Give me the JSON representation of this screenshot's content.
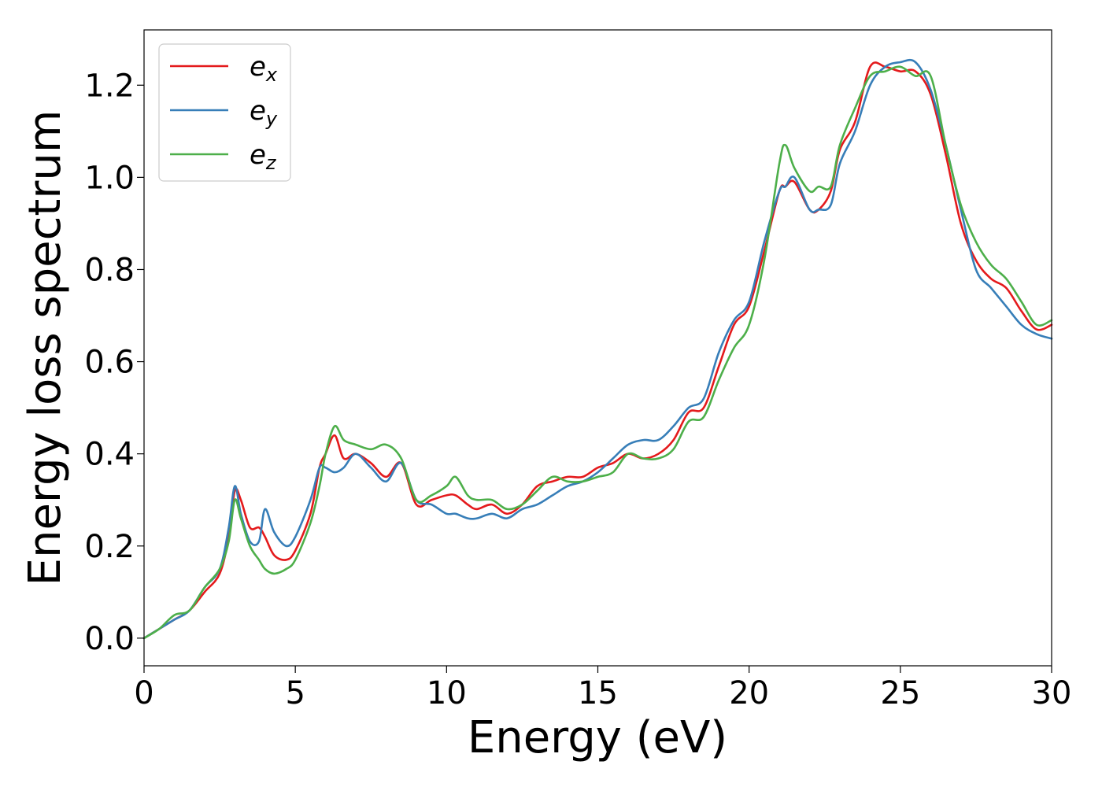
{
  "chart_data": {
    "type": "line",
    "title": "",
    "xlabel": "Energy (eV)",
    "ylabel": "Energy loss spectrum",
    "xlim": [
      0,
      30
    ],
    "ylim": [
      -0.06,
      1.32
    ],
    "xticks": [
      0,
      5,
      10,
      15,
      20,
      25,
      30
    ],
    "yticks": [
      0.0,
      0.2,
      0.4,
      0.6,
      0.8,
      1.0,
      1.2
    ],
    "xtick_labels": [
      "0",
      "5",
      "10",
      "15",
      "20",
      "25",
      "30"
    ],
    "ytick_labels": [
      "0.0",
      "0.2",
      "0.4",
      "0.6",
      "0.8",
      "1.0",
      "1.2"
    ],
    "grid": false,
    "legend_position": "top-left",
    "series": [
      {
        "name": "e",
        "subscript": "x",
        "color": "#e41a1c",
        "x": [
          0,
          0.5,
          1.0,
          1.5,
          2.0,
          2.5,
          2.8,
          3.0,
          3.2,
          3.5,
          3.8,
          4.0,
          4.3,
          4.7,
          5.0,
          5.5,
          5.8,
          6.0,
          6.3,
          6.6,
          7.0,
          7.5,
          8.0,
          8.5,
          9.0,
          9.5,
          10.0,
          10.3,
          10.7,
          11.0,
          11.5,
          12.0,
          12.5,
          13.0,
          13.5,
          14.0,
          14.5,
          15.0,
          15.5,
          16.0,
          16.5,
          17.0,
          17.5,
          18.0,
          18.5,
          19.0,
          19.5,
          20.0,
          20.5,
          21.0,
          21.2,
          21.5,
          22.0,
          22.3,
          22.7,
          23.0,
          23.5,
          24.0,
          24.5,
          25.0,
          25.5,
          26.0,
          26.5,
          27.0,
          27.5,
          28.0,
          28.5,
          29.0,
          29.5,
          30.0
        ],
        "values": [
          0.0,
          0.02,
          0.04,
          0.06,
          0.1,
          0.14,
          0.22,
          0.32,
          0.3,
          0.24,
          0.24,
          0.22,
          0.18,
          0.17,
          0.19,
          0.27,
          0.37,
          0.4,
          0.44,
          0.39,
          0.4,
          0.38,
          0.35,
          0.38,
          0.29,
          0.3,
          0.31,
          0.31,
          0.29,
          0.28,
          0.29,
          0.27,
          0.29,
          0.33,
          0.34,
          0.35,
          0.35,
          0.37,
          0.38,
          0.4,
          0.39,
          0.4,
          0.43,
          0.49,
          0.5,
          0.59,
          0.68,
          0.72,
          0.84,
          0.97,
          0.98,
          0.99,
          0.93,
          0.93,
          0.97,
          1.06,
          1.12,
          1.24,
          1.24,
          1.23,
          1.23,
          1.18,
          1.05,
          0.9,
          0.82,
          0.78,
          0.76,
          0.71,
          0.67,
          0.68
        ]
      },
      {
        "name": "e",
        "subscript": "y",
        "color": "#377eb8",
        "x": [
          0,
          0.5,
          1.0,
          1.5,
          2.0,
          2.5,
          2.8,
          3.0,
          3.2,
          3.5,
          3.8,
          4.0,
          4.3,
          4.7,
          5.0,
          5.5,
          5.8,
          6.0,
          6.3,
          6.6,
          7.0,
          7.5,
          8.0,
          8.5,
          9.0,
          9.5,
          10.0,
          10.3,
          10.7,
          11.0,
          11.5,
          12.0,
          12.5,
          13.0,
          13.5,
          14.0,
          14.5,
          15.0,
          15.5,
          16.0,
          16.5,
          17.0,
          17.5,
          18.0,
          18.5,
          19.0,
          19.5,
          20.0,
          20.5,
          21.0,
          21.2,
          21.5,
          22.0,
          22.3,
          22.7,
          23.0,
          23.5,
          24.0,
          24.5,
          25.0,
          25.5,
          26.0,
          26.5,
          27.0,
          27.5,
          28.0,
          28.5,
          29.0,
          29.5,
          30.0
        ],
        "values": [
          0.0,
          0.02,
          0.04,
          0.06,
          0.11,
          0.15,
          0.24,
          0.33,
          0.27,
          0.21,
          0.21,
          0.28,
          0.23,
          0.2,
          0.22,
          0.3,
          0.37,
          0.37,
          0.36,
          0.37,
          0.4,
          0.37,
          0.34,
          0.38,
          0.3,
          0.29,
          0.27,
          0.27,
          0.26,
          0.26,
          0.27,
          0.26,
          0.28,
          0.29,
          0.31,
          0.33,
          0.34,
          0.36,
          0.39,
          0.42,
          0.43,
          0.43,
          0.46,
          0.5,
          0.52,
          0.62,
          0.69,
          0.73,
          0.86,
          0.97,
          0.98,
          1.0,
          0.93,
          0.93,
          0.94,
          1.03,
          1.1,
          1.2,
          1.24,
          1.25,
          1.25,
          1.19,
          1.07,
          0.93,
          0.8,
          0.76,
          0.72,
          0.68,
          0.66,
          0.65
        ]
      },
      {
        "name": "e",
        "subscript": "z",
        "color": "#4daf4a",
        "x": [
          0,
          0.5,
          1.0,
          1.5,
          2.0,
          2.5,
          2.8,
          3.0,
          3.2,
          3.5,
          3.8,
          4.0,
          4.3,
          4.7,
          5.0,
          5.5,
          5.8,
          6.0,
          6.3,
          6.6,
          7.0,
          7.5,
          8.0,
          8.5,
          9.0,
          9.5,
          10.0,
          10.3,
          10.7,
          11.0,
          11.5,
          12.0,
          12.5,
          13.0,
          13.5,
          14.0,
          14.5,
          15.0,
          15.5,
          16.0,
          16.5,
          17.0,
          17.5,
          18.0,
          18.5,
          19.0,
          19.5,
          20.0,
          20.5,
          21.0,
          21.2,
          21.5,
          22.0,
          22.3,
          22.7,
          23.0,
          23.5,
          24.0,
          24.5,
          25.0,
          25.5,
          26.0,
          26.5,
          27.0,
          27.5,
          28.0,
          28.5,
          29.0,
          29.5,
          30.0
        ],
        "values": [
          0.0,
          0.02,
          0.05,
          0.06,
          0.11,
          0.15,
          0.21,
          0.3,
          0.26,
          0.2,
          0.17,
          0.15,
          0.14,
          0.15,
          0.17,
          0.25,
          0.33,
          0.4,
          0.46,
          0.43,
          0.42,
          0.41,
          0.42,
          0.39,
          0.3,
          0.31,
          0.33,
          0.35,
          0.31,
          0.3,
          0.3,
          0.28,
          0.29,
          0.32,
          0.35,
          0.34,
          0.34,
          0.35,
          0.36,
          0.4,
          0.39,
          0.39,
          0.41,
          0.47,
          0.48,
          0.56,
          0.63,
          0.68,
          0.82,
          1.03,
          1.07,
          1.02,
          0.97,
          0.98,
          0.98,
          1.07,
          1.15,
          1.22,
          1.23,
          1.24,
          1.22,
          1.22,
          1.07,
          0.94,
          0.86,
          0.81,
          0.78,
          0.73,
          0.68,
          0.69
        ]
      }
    ]
  }
}
